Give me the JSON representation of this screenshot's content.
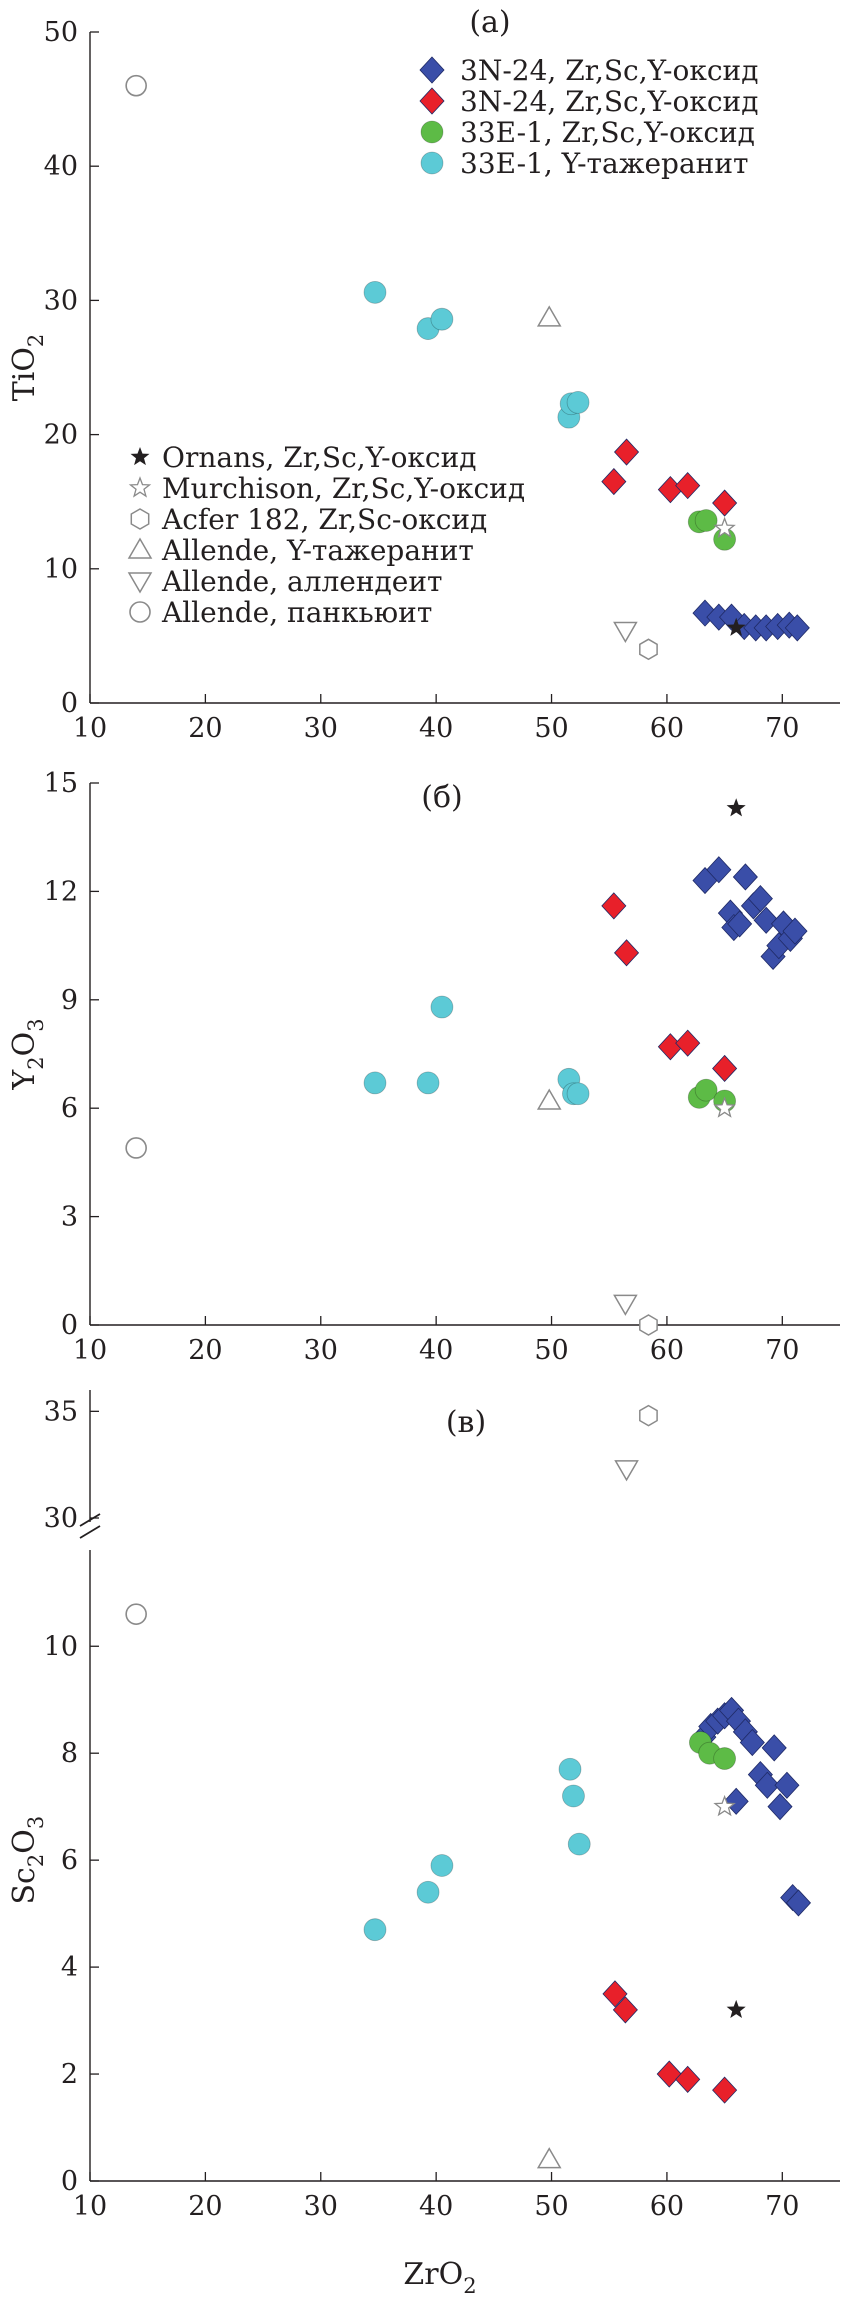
{
  "chart_data": [
    {
      "type": "scatter",
      "panel_label": "(а)",
      "xlim": [
        10,
        75
      ],
      "ylim": [
        0,
        50
      ],
      "xticks": [
        10,
        20,
        30,
        40,
        50,
        60,
        70
      ],
      "yticks": [
        0,
        10,
        20,
        30,
        40,
        50
      ],
      "ylabel_main": "TiO",
      "ylabel_sub": "2",
      "series": [
        {
          "name": "3N-24, Zr,Sc,Y-оксид",
          "marker": "diamond",
          "color": "#3a4ea8",
          "x": [
            63.3,
            64.5,
            65.6,
            66.7,
            67.7,
            68.6,
            69.6,
            70.6,
            71.3
          ],
          "y": [
            6.7,
            6.4,
            6.4,
            5.7,
            5.6,
            5.6,
            5.7,
            5.8,
            5.6
          ]
        },
        {
          "name": "3N-24, Zr,Sc,Y-оксид",
          "marker": "diamond",
          "color": "#e8202a",
          "x": [
            55.4,
            56.5,
            60.3,
            61.8,
            65.0
          ],
          "y": [
            16.5,
            18.7,
            15.9,
            16.2,
            14.9
          ]
        },
        {
          "name": "33E-1, Zr,Sc,Y-оксид",
          "marker": "circle",
          "color": "#5dbb46",
          "x": [
            62.8,
            63.4,
            65.0
          ],
          "y": [
            13.5,
            13.6,
            12.2
          ]
        },
        {
          "name": "33E-1, Y-тажеранит",
          "marker": "circle",
          "color": "#5ccad6",
          "x": [
            34.7,
            39.3,
            40.5,
            51.5,
            51.7,
            52.3
          ],
          "y": [
            30.6,
            27.9,
            28.6,
            21.3,
            22.3,
            22.4
          ]
        },
        {
          "name": "Ornans, Zr,Sc,Y-оксид",
          "marker": "star-filled",
          "color": "#231f20",
          "x": [
            66.0
          ],
          "y": [
            5.6
          ]
        },
        {
          "name": "Murchison, Zr,Sc,Y-оксид",
          "marker": "star-open",
          "color": "#8a8a8a",
          "x": [
            65.0
          ],
          "y": [
            13.0
          ]
        },
        {
          "name": "Acfer 182, Zr,Sc-оксид",
          "marker": "hexagon",
          "color": "#8a8a8a",
          "x": [
            58.4
          ],
          "y": [
            4.0
          ]
        },
        {
          "name": "Allende, Y-тажеранит",
          "marker": "triangle-up",
          "color": "#8a8a8a",
          "x": [
            49.8
          ],
          "y": [
            28.7
          ]
        },
        {
          "name": "Allende, аллендеит",
          "marker": "triangle-down",
          "color": "#8a8a8a",
          "x": [
            56.4
          ],
          "y": [
            5.4
          ]
        },
        {
          "name": "Allende, панкьюит",
          "marker": "circle-open",
          "color": "#8a8a8a",
          "x": [
            14.0
          ],
          "y": [
            46.0
          ]
        }
      ]
    },
    {
      "type": "scatter",
      "panel_label": "(б)",
      "xlim": [
        10,
        75
      ],
      "ylim": [
        0,
        15
      ],
      "xticks": [
        10,
        20,
        30,
        40,
        50,
        60,
        70
      ],
      "yticks": [
        0,
        3,
        6,
        9,
        12,
        15
      ],
      "ylabel_main": "Y",
      "ylabel_sub1": "2",
      "ylabel_mid": "O",
      "ylabel_sub2": "3",
      "series": [
        {
          "name": "3N-24, Zr,Sc,Y-оксид",
          "marker": "diamond",
          "color": "#3a4ea8",
          "x": [
            63.3,
            64.5,
            65.5,
            65.8,
            66.3,
            66.8,
            67.5,
            68.1,
            68.6,
            69.2,
            69.7,
            70.1,
            70.7,
            71.1
          ],
          "y": [
            12.3,
            12.6,
            11.4,
            11.0,
            11.1,
            12.4,
            11.6,
            11.8,
            11.2,
            10.2,
            10.5,
            11.1,
            10.7,
            10.9
          ]
        },
        {
          "name": "3N-24, Zr,Sc,Y-оксид",
          "marker": "diamond",
          "color": "#e8202a",
          "x": [
            55.4,
            56.5,
            60.3,
            61.8,
            65.0
          ],
          "y": [
            11.6,
            10.3,
            7.7,
            7.8,
            7.1
          ]
        },
        {
          "name": "33E-1, Zr,Sc,Y-оксид",
          "marker": "circle",
          "color": "#5dbb46",
          "x": [
            62.8,
            63.4,
            65.0
          ],
          "y": [
            6.3,
            6.5,
            6.2
          ]
        },
        {
          "name": "33E-1, Y-тажеранит",
          "marker": "circle",
          "color": "#5ccad6",
          "x": [
            34.7,
            39.3,
            40.5,
            51.5,
            51.9,
            52.3
          ],
          "y": [
            6.7,
            6.7,
            8.8,
            6.8,
            6.4,
            6.4
          ]
        },
        {
          "name": "Ornans, Zr,Sc,Y-оксид",
          "marker": "star-filled",
          "color": "#231f20",
          "x": [
            66.0
          ],
          "y": [
            14.3
          ]
        },
        {
          "name": "Murchison, Zr,Sc,Y-оксид",
          "marker": "star-open",
          "color": "#8a8a8a",
          "x": [
            65.0
          ],
          "y": [
            6.0
          ]
        },
        {
          "name": "Acfer 182, Zr,Sc-оксид",
          "marker": "hexagon",
          "color": "#8a8a8a",
          "x": [
            58.4
          ],
          "y": [
            0.0
          ]
        },
        {
          "name": "Allende, Y-тажеранит",
          "marker": "triangle-up",
          "color": "#8a8a8a",
          "x": [
            49.8
          ],
          "y": [
            6.2
          ]
        },
        {
          "name": "Allende, аллендеит",
          "marker": "triangle-down",
          "color": "#8a8a8a",
          "x": [
            56.4
          ],
          "y": [
            0.6
          ]
        },
        {
          "name": "Allende, панкьюит",
          "marker": "circle-open",
          "color": "#8a8a8a",
          "x": [
            14.0
          ],
          "y": [
            4.9
          ]
        }
      ]
    },
    {
      "type": "scatter",
      "panel_label": "(в)",
      "xlim": [
        10,
        75
      ],
      "ylim_lower": [
        0,
        11.8
      ],
      "ylim_upper": [
        30,
        36
      ],
      "axis_break": true,
      "xticks": [
        10,
        20,
        30,
        40,
        50,
        60,
        70
      ],
      "yticks_lower": [
        0,
        2,
        4,
        6,
        8,
        10
      ],
      "yticks_upper": [
        30,
        35
      ],
      "ylabel_main": "Sc",
      "ylabel_sub1": "2",
      "ylabel_mid": "O",
      "ylabel_sub2": "3",
      "xlabel_main": "ZrO",
      "xlabel_sub": "2",
      "series": [
        {
          "name": "3N-24, Zr,Sc,Y-оксид",
          "marker": "diamond",
          "color": "#3a4ea8",
          "x": [
            63.2,
            63.8,
            64.4,
            65.0,
            65.6,
            66.2,
            66.8,
            67.4,
            68.1,
            68.7,
            69.3,
            69.8,
            70.4,
            70.9,
            71.4,
            66.0
          ],
          "y": [
            8.3,
            8.5,
            8.6,
            8.7,
            8.8,
            8.6,
            8.4,
            8.2,
            7.6,
            7.4,
            8.1,
            7.0,
            7.4,
            5.3,
            5.2,
            7.1
          ]
        },
        {
          "name": "3N-24, Zr,Sc,Y-оксид",
          "marker": "diamond",
          "color": "#e8202a",
          "x": [
            55.5,
            56.4,
            60.2,
            61.8,
            65.0
          ],
          "y": [
            3.5,
            3.2,
            2.0,
            1.9,
            1.7
          ]
        },
        {
          "name": "33E-1, Zr,Sc,Y-оксид",
          "marker": "circle",
          "color": "#5dbb46",
          "x": [
            62.9,
            63.7,
            65.0
          ],
          "y": [
            8.2,
            8.0,
            7.9
          ]
        },
        {
          "name": "33E-1, Y-тажеранит",
          "marker": "circle",
          "color": "#5ccad6",
          "x": [
            34.7,
            39.3,
            40.5,
            51.6,
            51.9,
            52.4
          ],
          "y": [
            4.7,
            5.4,
            5.9,
            7.7,
            7.2,
            6.3
          ]
        },
        {
          "name": "Ornans, Zr,Sc,Y-оксид",
          "marker": "star-filled",
          "color": "#231f20",
          "x": [
            66.0
          ],
          "y": [
            3.2
          ]
        },
        {
          "name": "Murchison, Zr,Sc,Y-оксид",
          "marker": "star-open",
          "color": "#8a8a8a",
          "x": [
            65.0
          ],
          "y": [
            7.0
          ]
        },
        {
          "name": "Acfer 182, Zr,Sc-оксид",
          "marker": "hexagon",
          "color": "#8a8a8a",
          "x": [
            58.4
          ],
          "y": [
            34.8
          ]
        },
        {
          "name": "Allende, Y-тажеранит",
          "marker": "triangle-up",
          "color": "#8a8a8a",
          "x": [
            49.8
          ],
          "y": [
            0.4
          ]
        },
        {
          "name": "Allende, аллендеит",
          "marker": "triangle-down",
          "color": "#8a8a8a",
          "x": [
            56.5
          ],
          "y": [
            32.3
          ]
        },
        {
          "name": "Allende, панкьюит",
          "marker": "circle-open",
          "color": "#8a8a8a",
          "x": [
            14.0
          ],
          "y": [
            10.6
          ]
        }
      ]
    }
  ]
}
